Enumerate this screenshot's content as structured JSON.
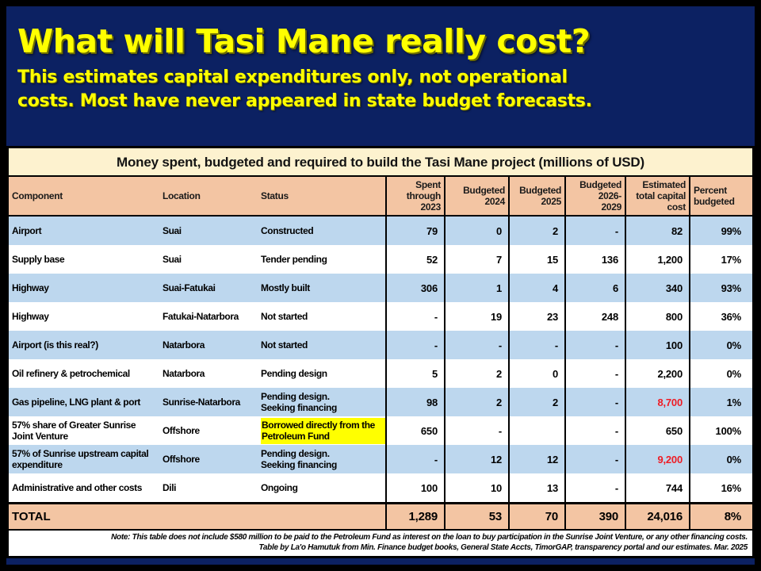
{
  "slide": {
    "title": "What will Tasi Mane really cost?",
    "subtitle_line1": "This estimates capital expenditures only, not operational",
    "subtitle_line2": "costs. Most have never appeared in state budget forecasts."
  },
  "table": {
    "caption": "Money spent, budgeted and required to build the Tasi Mane project (millions of USD)",
    "columns": [
      {
        "key": "component",
        "label": "Component",
        "align": "left",
        "numeric": false
      },
      {
        "key": "location",
        "label": "Location",
        "align": "left",
        "numeric": false
      },
      {
        "key": "status",
        "label": "Status",
        "align": "left",
        "numeric": false
      },
      {
        "key": "spent2023",
        "label": "Spent\nthrough\n2023",
        "align": "right",
        "numeric": true
      },
      {
        "key": "b2024",
        "label": "Budgeted\n2024",
        "align": "right",
        "numeric": true
      },
      {
        "key": "b2025",
        "label": "Budgeted\n2025",
        "align": "right",
        "numeric": true
      },
      {
        "key": "b2026_2029",
        "label": "Budgeted\n2026-\n2029",
        "align": "right",
        "numeric": true
      },
      {
        "key": "est_total",
        "label": "Estimated\ntotal capital\ncost",
        "align": "right",
        "numeric": true
      },
      {
        "key": "pct",
        "label": "Percent\nbudgeted",
        "align": "left",
        "numeric": true
      }
    ],
    "rows": [
      {
        "component": "Airport",
        "location": "Suai",
        "status": "Constructed",
        "spent2023": "79",
        "b2024": "0",
        "b2025": "2",
        "b2026_2029": "-",
        "est_total": "82",
        "pct": "99%",
        "total_red": false,
        "status_highlight": false
      },
      {
        "component": "Supply base",
        "location": "Suai",
        "status": "Tender pending",
        "spent2023": "52",
        "b2024": "7",
        "b2025": "15",
        "b2026_2029": "136",
        "est_total": "1,200",
        "pct": "17%",
        "total_red": false,
        "status_highlight": false
      },
      {
        "component": "Highway",
        "location": "Suai-Fatukai",
        "status": "Mostly built",
        "spent2023": "306",
        "b2024": "1",
        "b2025": "4",
        "b2026_2029": "6",
        "est_total": "340",
        "pct": "93%",
        "total_red": false,
        "status_highlight": false
      },
      {
        "component": "Highway",
        "location": "Fatukai-Natarbora",
        "status": "Not started",
        "spent2023": "-",
        "b2024": "19",
        "b2025": "23",
        "b2026_2029": "248",
        "est_total": "800",
        "pct": "36%",
        "total_red": false,
        "status_highlight": false
      },
      {
        "component": "Airport  (is this real?)",
        "location": "Natarbora",
        "status": "Not started",
        "spent2023": "-",
        "b2024": "-",
        "b2025": "-",
        "b2026_2029": "-",
        "est_total": "100",
        "pct": "0%",
        "total_red": false,
        "status_highlight": false
      },
      {
        "component": "Oil refinery & petrochemical",
        "location": "Natarbora",
        "status": "Pending design",
        "spent2023": "5",
        "b2024": "2",
        "b2025": "0",
        "b2026_2029": "-",
        "est_total": "2,200",
        "pct": "0%",
        "total_red": false,
        "status_highlight": false
      },
      {
        "component": "Gas pipeline, LNG plant & port",
        "location": "Sunrise-Natarbora",
        "status": "Pending design.\nSeeking financing",
        "spent2023": "98",
        "b2024": "2",
        "b2025": "2",
        "b2026_2029": "-",
        "est_total": "8,700",
        "pct": "1%",
        "total_red": true,
        "status_highlight": false
      },
      {
        "component": "57% share of Greater Sunrise\nJoint Venture",
        "location": "Offshore",
        "status": "Borrowed directly from the\nPetroleum Fund",
        "spent2023": "650",
        "b2024": "-",
        "b2025": "",
        "b2026_2029": "-",
        "est_total": "650",
        "pct": "100%",
        "total_red": false,
        "status_highlight": true
      },
      {
        "component": "57% of Sunrise upstream capital\nexpenditure",
        "location": "Offshore",
        "status": "Pending design.\nSeeking financing",
        "spent2023": "-",
        "b2024": "12",
        "b2025": "12",
        "b2026_2029": "-",
        "est_total": "9,200",
        "pct": "0%",
        "total_red": true,
        "status_highlight": false
      },
      {
        "component": "Administrative and other costs",
        "location": "Dili",
        "status": "Ongoing",
        "spent2023": "100",
        "b2024": "10",
        "b2025": "13",
        "b2026_2029": "-",
        "est_total": "744",
        "pct": "16%",
        "total_red": false,
        "status_highlight": false
      }
    ],
    "total_row": {
      "label": "TOTAL",
      "spent2023": "1,289",
      "b2024": "53",
      "b2025": "70",
      "b2026_2029": "390",
      "est_total": "24,016",
      "pct": "8%"
    },
    "footnote_line1": "Note: This table does not include $580 million to be paid to the Petroleum Fund as interest on the loan to buy participation in the Sunrise Joint Venture, or any other financing costs.",
    "footnote_line2": "Table by La'o Hamutuk from Min. Finance budget books, General State Accts, TimorGAP, transparency portal and our estimates. Mar. 2025"
  },
  "colors": {
    "background_navy": "#0c2162",
    "frame_black": "#000000",
    "title_yellow": "#ffff00",
    "caption_cream": "#fdf2cf",
    "header_salmon": "#f3c5a3",
    "row_blue": "#bdd7ee",
    "row_white": "#ffffff",
    "alert_red": "#ee1c25",
    "highlight_yellow": "#ffff00"
  }
}
